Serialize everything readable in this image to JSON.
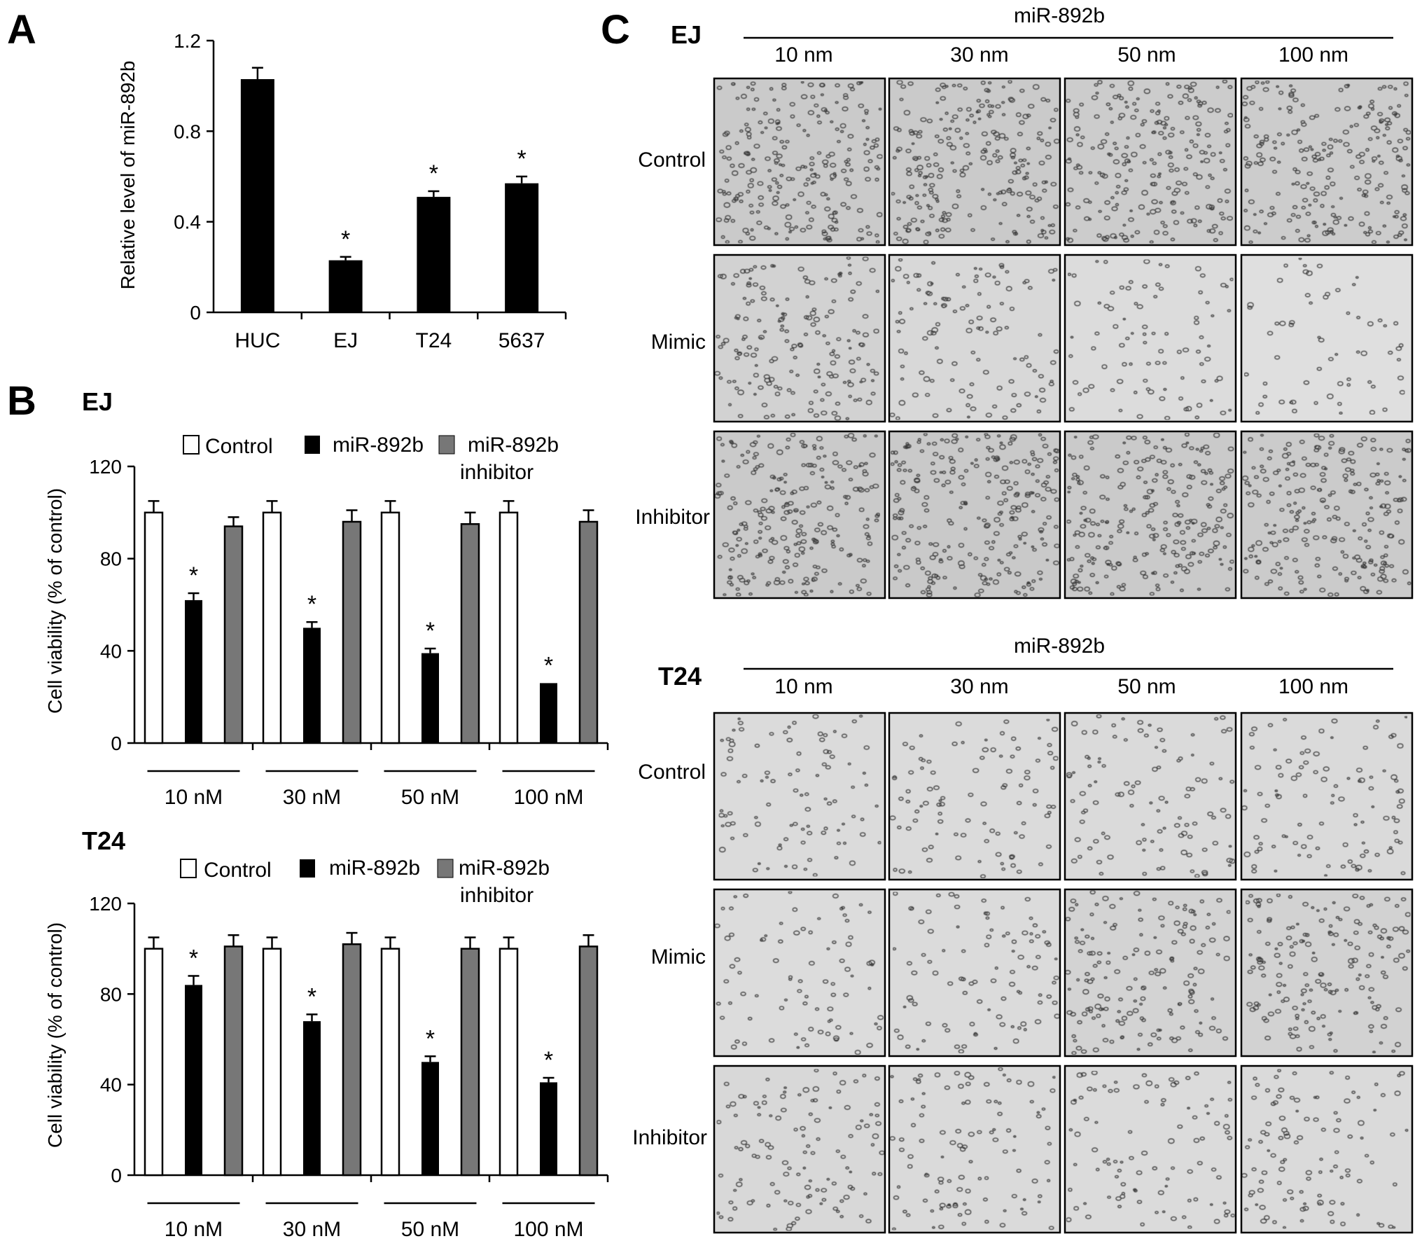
{
  "panel_labels": {
    "a": "A",
    "b": "B",
    "c": "C"
  },
  "chart_data": [
    {
      "id": "A",
      "type": "bar",
      "categories": [
        "HUC",
        "EJ",
        "T24",
        "5637"
      ],
      "values": [
        1.03,
        0.23,
        0.51,
        0.57
      ],
      "errors": [
        0.05,
        0.015,
        0.025,
        0.03
      ],
      "significant": [
        false,
        true,
        true,
        true
      ],
      "sig_marker": "*",
      "ylabel": "Relative level of miR-892b",
      "ylim": [
        0,
        1.2
      ],
      "yticks": [
        "0",
        "0.4",
        "0.8",
        "1.2"
      ],
      "ytick_values": [
        0,
        0.4,
        0.8,
        1.2
      ],
      "color": "#000000"
    },
    {
      "id": "B-EJ",
      "type": "bar",
      "title": "EJ",
      "categories": [
        "10 nM",
        "30 nM",
        "50 nM",
        "100 nM"
      ],
      "series": [
        {
          "name": "Control",
          "values": [
            100,
            100,
            100,
            100
          ],
          "errors": [
            5,
            5,
            5,
            5
          ],
          "color": "#ffffff",
          "significant": [
            false,
            false,
            false,
            false
          ]
        },
        {
          "name": "miR-892b",
          "values": [
            62,
            50,
            39,
            26
          ],
          "errors": [
            3,
            2.5,
            2,
            0
          ],
          "color": "#000000",
          "significant": [
            true,
            true,
            true,
            true
          ]
        },
        {
          "name": "miR-892b inhibitor",
          "values": [
            94,
            96,
            95,
            96
          ],
          "errors": [
            4,
            5,
            5,
            5
          ],
          "color": "#777777",
          "significant": [
            false,
            false,
            false,
            false
          ]
        }
      ],
      "legend_labels": [
        "Control",
        "miR-892b",
        "miR-892b",
        "inhibitor"
      ],
      "sig_marker": "*",
      "ylabel": "Cell viability (% of control)",
      "ylim": [
        0,
        120
      ],
      "yticks": [
        "0",
        "40",
        "80",
        "120"
      ],
      "ytick_values": [
        0,
        40,
        80,
        120
      ]
    },
    {
      "id": "B-T24",
      "type": "bar",
      "title": "T24",
      "categories": [
        "10 nM",
        "30 nM",
        "50 nM",
        "100 nM"
      ],
      "series": [
        {
          "name": "Control",
          "values": [
            100,
            100,
            100,
            100
          ],
          "errors": [
            5,
            5,
            5,
            5
          ],
          "color": "#ffffff",
          "significant": [
            false,
            false,
            false,
            false
          ]
        },
        {
          "name": "miR-892b",
          "values": [
            84,
            68,
            50,
            41
          ],
          "errors": [
            4,
            3,
            2.5,
            2
          ],
          "color": "#000000",
          "significant": [
            true,
            true,
            true,
            true
          ]
        },
        {
          "name": "miR-892b inhibitor",
          "values": [
            101,
            102,
            100,
            101
          ],
          "errors": [
            5,
            5,
            5,
            5
          ],
          "color": "#777777",
          "significant": [
            false,
            false,
            false,
            false
          ]
        }
      ],
      "legend_labels": [
        "Control",
        "miR-892b",
        "miR-892b",
        "inhibitor"
      ],
      "sig_marker": "*",
      "ylabel": "Cell viability (% of control)",
      "ylim": [
        0,
        120
      ],
      "yticks": [
        "0",
        "40",
        "80",
        "120"
      ],
      "ytick_values": [
        0,
        40,
        80,
        120
      ]
    }
  ],
  "panel_c": {
    "groups": [
      {
        "cell_line": "EJ",
        "treatment": "miR-892b",
        "doses": [
          "10 nm",
          "30 nm",
          "50 nm",
          "100 nm"
        ],
        "rows": [
          "Control",
          "Mimic",
          "Inhibitor"
        ],
        "density": [
          [
            0.9,
            0.9,
            0.85,
            0.85
          ],
          [
            0.6,
            0.35,
            0.22,
            0.1
          ],
          [
            0.9,
            0.95,
            0.9,
            0.88
          ]
        ]
      },
      {
        "cell_line": "T24",
        "treatment": "miR-892b",
        "doses": [
          "10 nm",
          "30 nm",
          "50 nm",
          "100 nm"
        ],
        "rows": [
          "Control",
          "Mimic",
          "Inhibitor"
        ],
        "density": [
          [
            0.25,
            0.25,
            0.3,
            0.28
          ],
          [
            0.2,
            0.25,
            0.55,
            0.6
          ],
          [
            0.35,
            0.3,
            0.25,
            0.3
          ]
        ]
      }
    ]
  }
}
